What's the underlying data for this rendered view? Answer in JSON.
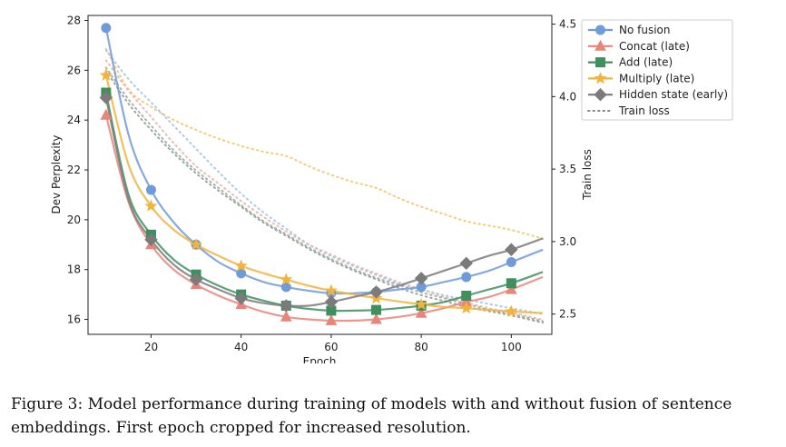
{
  "caption": "Figure 3: Model performance during training of models with and without fusion of sentence embeddings. First epoch cropped for increased resolution.",
  "chart_data": {
    "type": "line",
    "title": "",
    "xlabel": "Epoch",
    "ylabel": "Dev Perplexity",
    "y2label": "Train loss",
    "xlim": [
      6,
      109
    ],
    "ylim": [
      15.4,
      28.2
    ],
    "y2lim": [
      2.36,
      4.56
    ],
    "xticks": [
      20,
      40,
      60,
      80,
      100
    ],
    "yticks": [
      16,
      18,
      20,
      22,
      24,
      26,
      28
    ],
    "y2ticks": [
      2.5,
      3.0,
      3.5,
      4.0,
      4.5
    ],
    "grid": false,
    "legend_position": "top-right",
    "marker_x": [
      10,
      20,
      30,
      40,
      50,
      60,
      70,
      80,
      90,
      100
    ],
    "series": [
      {
        "name": "No fusion",
        "color": "#6f9bd8",
        "marker": "circle",
        "curve_x": [
          10,
          15,
          20,
          25,
          30,
          35,
          40,
          45,
          50,
          55,
          60,
          65,
          70,
          75,
          80,
          85,
          90,
          95,
          100,
          107
        ],
        "curve_y": [
          27.7,
          23.4,
          21.2,
          19.9,
          19.0,
          18.3,
          17.85,
          17.5,
          17.3,
          17.15,
          17.05,
          17.05,
          17.1,
          17.2,
          17.3,
          17.5,
          17.7,
          17.95,
          18.3,
          18.8
        ],
        "values": [
          27.7,
          21.2,
          19.0,
          17.85,
          17.3,
          17.05,
          17.1,
          17.3,
          17.7,
          18.3
        ]
      },
      {
        "name": "Concat (late)",
        "color": "#e8857a",
        "marker": "triangle",
        "curve_x": [
          10,
          15,
          20,
          25,
          30,
          35,
          40,
          45,
          50,
          55,
          60,
          65,
          70,
          75,
          80,
          85,
          90,
          95,
          100,
          107
        ],
        "curve_y": [
          24.2,
          20.7,
          19.0,
          18.0,
          17.4,
          16.95,
          16.6,
          16.3,
          16.1,
          16.0,
          15.95,
          15.95,
          16.0,
          16.1,
          16.25,
          16.45,
          16.7,
          16.9,
          17.2,
          17.7
        ],
        "values": [
          24.2,
          19.0,
          17.4,
          16.6,
          16.1,
          15.95,
          16.0,
          16.25,
          16.7,
          17.2
        ]
      },
      {
        "name": "Add (late)",
        "color": "#3f8f5f",
        "marker": "square",
        "curve_x": [
          10,
          15,
          20,
          25,
          30,
          35,
          40,
          45,
          50,
          55,
          60,
          65,
          70,
          75,
          80,
          85,
          90,
          95,
          100,
          107
        ],
        "curve_y": [
          25.1,
          21.0,
          19.4,
          18.4,
          17.8,
          17.35,
          17.0,
          16.75,
          16.55,
          16.42,
          16.35,
          16.35,
          16.38,
          16.45,
          16.55,
          16.7,
          16.95,
          17.2,
          17.45,
          17.9
        ],
        "values": [
          25.1,
          19.4,
          17.8,
          17.0,
          16.55,
          16.35,
          16.38,
          16.55,
          16.95,
          17.45
        ]
      },
      {
        "name": "Multiply (late)",
        "color": "#f2b33d",
        "marker": "star",
        "curve_x": [
          10,
          15,
          20,
          25,
          30,
          35,
          40,
          45,
          50,
          55,
          60,
          65,
          70,
          75,
          80,
          85,
          90,
          95,
          100,
          107
        ],
        "curve_y": [
          25.8,
          22.2,
          20.55,
          19.6,
          19.0,
          18.55,
          18.15,
          17.85,
          17.6,
          17.35,
          17.15,
          17.0,
          16.85,
          16.72,
          16.6,
          16.5,
          16.45,
          16.38,
          16.32,
          16.25
        ],
        "values": [
          25.8,
          20.55,
          19.0,
          18.15,
          17.6,
          17.15,
          16.85,
          16.6,
          16.45,
          16.32
        ]
      },
      {
        "name": "Hidden state (early)",
        "color": "#7b7b7b",
        "marker": "diamond",
        "curve_x": [
          10,
          15,
          20,
          25,
          30,
          35,
          40,
          45,
          50,
          55,
          60,
          65,
          70,
          75,
          80,
          85,
          90,
          95,
          100,
          107
        ],
        "curve_y": [
          24.9,
          20.8,
          19.2,
          18.2,
          17.6,
          17.2,
          16.85,
          16.65,
          16.55,
          16.55,
          16.7,
          16.9,
          17.1,
          17.35,
          17.65,
          17.95,
          18.25,
          18.55,
          18.8,
          19.25
        ],
        "values": [
          24.9,
          19.2,
          17.6,
          16.85,
          16.55,
          16.7,
          17.1,
          17.65,
          18.25,
          18.8
        ]
      }
    ],
    "train_loss": {
      "name": "Train loss",
      "style": "dotted",
      "curves": [
        {
          "color": "#f2c76a",
          "x": [
            10,
            15,
            20,
            25,
            30,
            35,
            40,
            45,
            50,
            55,
            60,
            65,
            70,
            75,
            80,
            85,
            90,
            95,
            100,
            107
          ],
          "y": [
            4.33,
            4.05,
            3.93,
            3.84,
            3.77,
            3.71,
            3.66,
            3.62,
            3.59,
            3.52,
            3.46,
            3.41,
            3.37,
            3.3,
            3.24,
            3.19,
            3.14,
            3.11,
            3.08,
            3.02
          ]
        },
        {
          "color": "#a9c3e6",
          "x": [
            10,
            15,
            20,
            25,
            30,
            35,
            40,
            45,
            50,
            55,
            60,
            65,
            70,
            75,
            80,
            85,
            90,
            95,
            100,
            107
          ],
          "y": [
            4.32,
            4.12,
            3.96,
            3.8,
            3.64,
            3.48,
            3.33,
            3.2,
            3.09,
            2.98,
            2.9,
            2.83,
            2.77,
            2.71,
            2.67,
            2.63,
            2.6,
            2.57,
            2.54,
            2.5
          ]
        },
        {
          "color": "#e9b3ad",
          "x": [
            10,
            15,
            20,
            25,
            30,
            35,
            40,
            45,
            50,
            55,
            60,
            65,
            70,
            75,
            80,
            85,
            90,
            95,
            100,
            107
          ],
          "y": [
            4.25,
            4.04,
            3.86,
            3.68,
            3.52,
            3.4,
            3.28,
            3.17,
            3.07,
            2.98,
            2.91,
            2.84,
            2.78,
            2.72,
            2.67,
            2.62,
            2.58,
            2.54,
            2.51,
            2.46
          ]
        },
        {
          "color": "#8fb39a",
          "x": [
            10,
            15,
            20,
            25,
            30,
            35,
            40,
            45,
            50,
            55,
            60,
            65,
            70,
            75,
            80,
            85,
            90,
            95,
            100,
            107
          ],
          "y": [
            4.2,
            3.98,
            3.8,
            3.63,
            3.49,
            3.37,
            3.25,
            3.14,
            3.05,
            2.96,
            2.88,
            2.81,
            2.75,
            2.7,
            2.65,
            2.61,
            2.57,
            2.53,
            2.5,
            2.45
          ]
        },
        {
          "color": "#9a9a9a",
          "x": [
            10,
            15,
            20,
            25,
            30,
            35,
            40,
            45,
            50,
            55,
            60,
            65,
            70,
            75,
            80,
            85,
            90,
            95,
            100,
            107
          ],
          "y": [
            4.18,
            3.95,
            3.77,
            3.61,
            3.47,
            3.35,
            3.24,
            3.13,
            3.04,
            2.95,
            2.87,
            2.8,
            2.74,
            2.68,
            2.63,
            2.59,
            2.55,
            2.52,
            2.49,
            2.44
          ]
        }
      ]
    }
  }
}
